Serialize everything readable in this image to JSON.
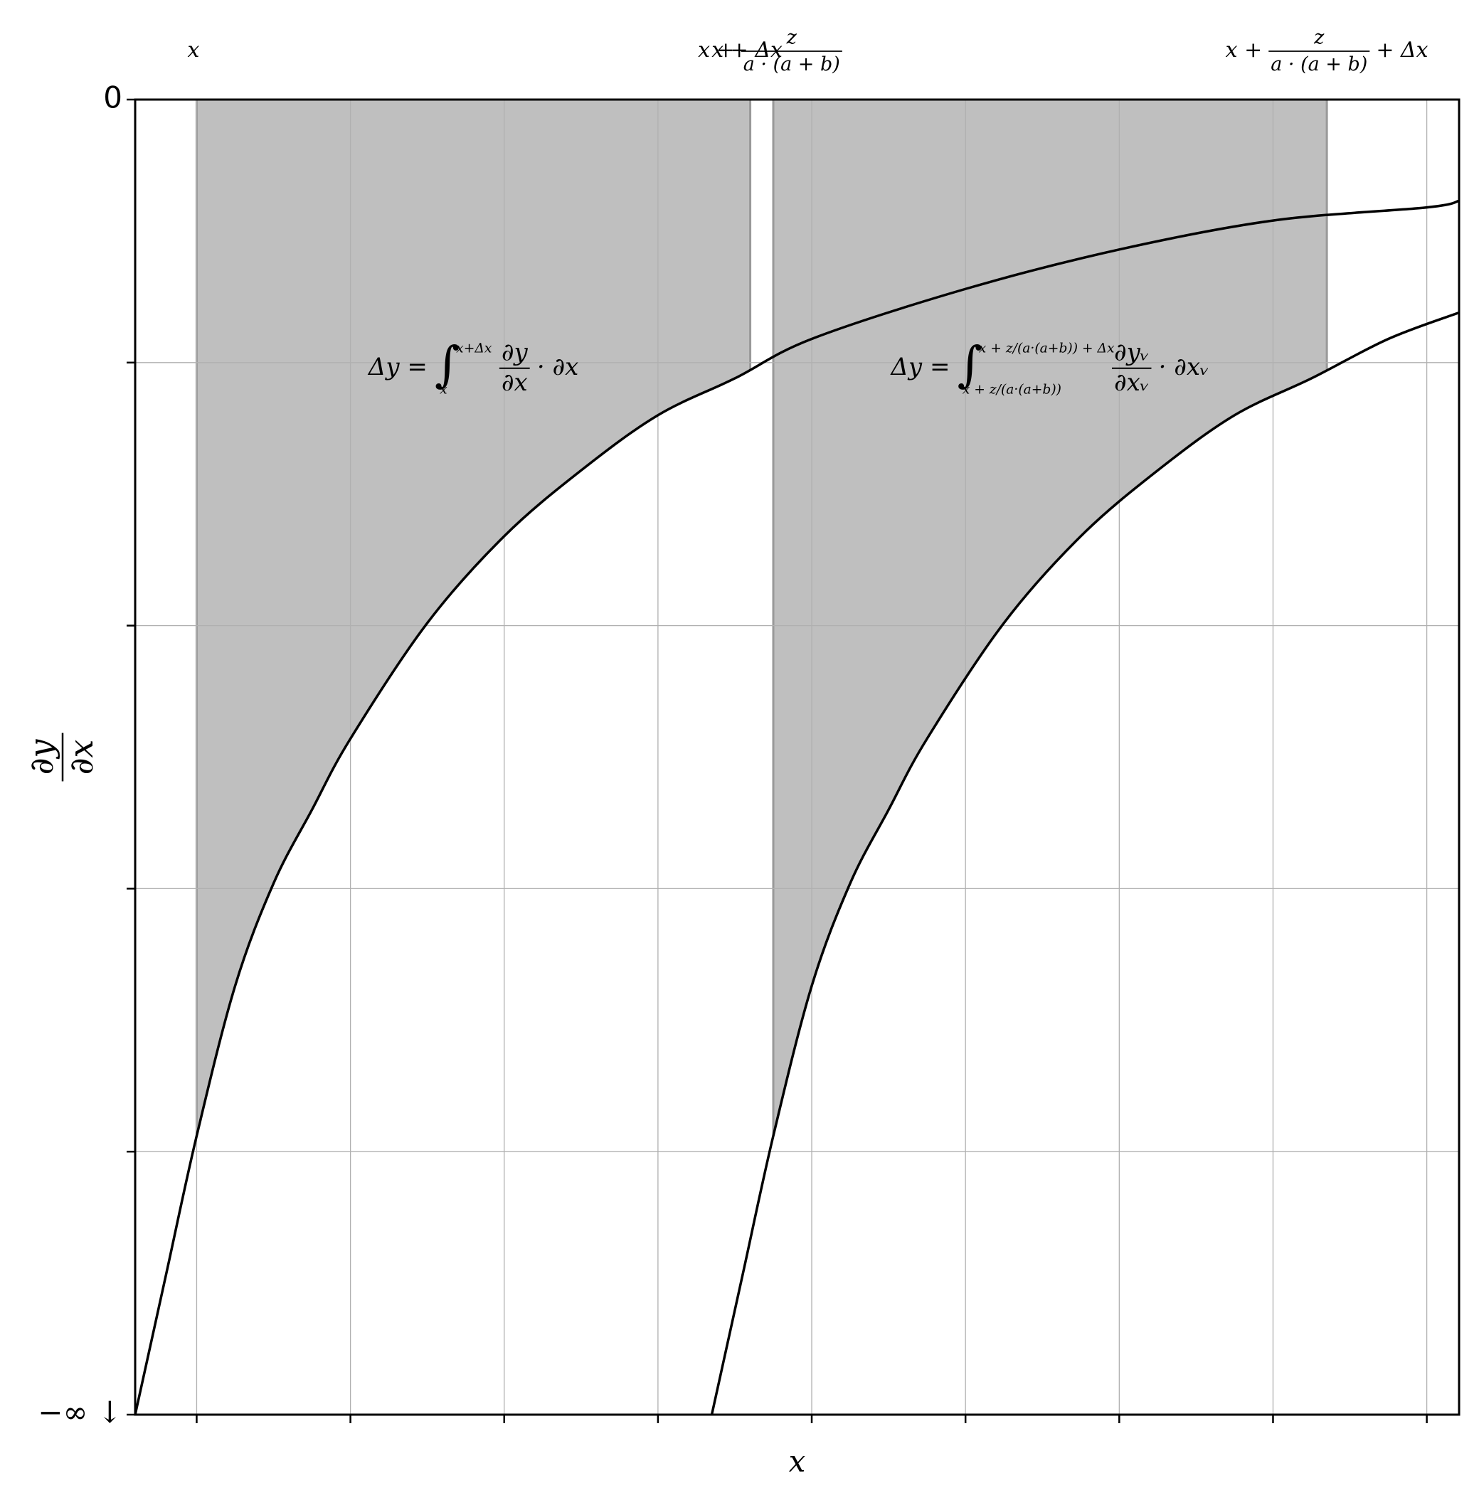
{
  "chart_data": {
    "type": "line",
    "xlabel": "x",
    "ylabel": {
      "num": "∂y",
      "den": "∂x"
    },
    "xlim": [
      -0.4,
      8.21
    ],
    "ylim": [
      -5,
      0
    ],
    "xticks": [
      0,
      1,
      2,
      3,
      4,
      5,
      6,
      7,
      8
    ],
    "yticks": [
      {
        "value": -5,
        "label": "−∞ ↓"
      },
      0
    ],
    "yticks_unlabeled": [
      -4,
      -3,
      -2,
      -1
    ],
    "grid": true,
    "series": [
      {
        "color": "#000000",
        "x": [
          -0.4,
          -0.2,
          0,
          0.25,
          0.5,
          0.75,
          1,
          1.5,
          2,
          2.5,
          3,
          3.5,
          4,
          5,
          6,
          7,
          8,
          8.21
        ],
        "values": [
          -5,
          -4.47,
          -3.94,
          -3.37,
          -2.98,
          -2.7,
          -2.43,
          -1.99,
          -1.66,
          -1.41,
          -1.2,
          -1.06,
          -0.91,
          -0.72,
          -0.57,
          -0.46,
          -0.41,
          -0.385
        ]
      },
      {
        "color": "#000000",
        "x": [
          3.35,
          3.55,
          3.75,
          4,
          4.25,
          4.5,
          4.75,
          5.25,
          5.75,
          6.25,
          6.75,
          7.25,
          7.75,
          8.21
        ],
        "values": [
          -5,
          -4.47,
          -3.94,
          -3.37,
          -2.98,
          -2.7,
          -2.43,
          -1.99,
          -1.66,
          -1.41,
          -1.2,
          -1.06,
          -0.91,
          -0.81
        ]
      }
    ],
    "fill_color": "#bfbfbf",
    "spans": [
      {
        "x0": 0,
        "x1": 3.6,
        "under": 0,
        "label0": {
          "prefix": "x"
        },
        "label1": {
          "prefix": "x + Δx"
        },
        "formula": {
          "lhs": "Δy =",
          "symbol": "∫",
          "upper": "x+Δx",
          "lower": "x",
          "num": "∂y",
          "den": "∂x",
          "tail": "· ∂x"
        }
      },
      {
        "x0": 3.75,
        "x1": 7.35,
        "under": 1,
        "label0": {
          "prefix": "x +",
          "num": "z",
          "den": "a · (a + b)"
        },
        "label1": {
          "prefix": "x +",
          "num": "z",
          "den": "a · (a + b)",
          "suffix": "+ Δx"
        },
        "formula": {
          "lhs": "Δy =",
          "symbol": "∫",
          "upper": "x + z/(a·(a+b)) + Δx",
          "lower": "x + z/(a·(a+b))",
          "num": "∂yᵥ",
          "den": "∂xᵥ",
          "tail": "· ∂xᵥ"
        }
      }
    ]
  }
}
